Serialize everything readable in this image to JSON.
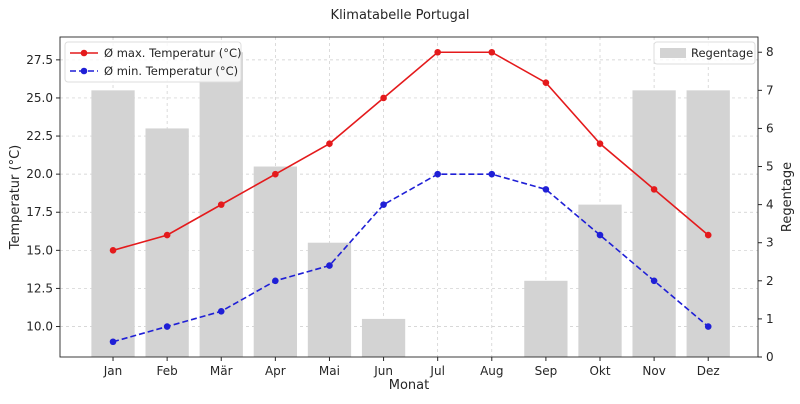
{
  "chart_data": {
    "type": "bar+line",
    "title": "Klimatabelle Portugal",
    "xlabel": "Monat",
    "ylabel": "Temperatur (°C)",
    "y2label": "Regentage",
    "categories": [
      "Jan",
      "Feb",
      "Mär",
      "Apr",
      "Mai",
      "Jun",
      "Jul",
      "Aug",
      "Sep",
      "Okt",
      "Nov",
      "Dez"
    ],
    "series": [
      {
        "name": "Ø max. Temperatur (°C)",
        "type": "line",
        "axis": "left",
        "color": "#e41a1c",
        "dash": "solid",
        "values": [
          15,
          16,
          18,
          20,
          22,
          25,
          28,
          28,
          26,
          22,
          19,
          16
        ]
      },
      {
        "name": "Ø min. Temperatur (°C)",
        "type": "line",
        "axis": "left",
        "color": "#1f1fd6",
        "dash": "dashed",
        "values": [
          9,
          10,
          11,
          13,
          14,
          18,
          20,
          20,
          19,
          16,
          13,
          10
        ]
      },
      {
        "name": "Regentage",
        "type": "bar",
        "axis": "right",
        "color": "#d3d3d3",
        "values": [
          7,
          6,
          8,
          5,
          3,
          1,
          0,
          0,
          2,
          4,
          7,
          7
        ]
      }
    ],
    "ylim": [
      8.0,
      29.0
    ],
    "y2lim": [
      0,
      8.4
    ],
    "yticks": [
      "10.0",
      "12.5",
      "15.0",
      "17.5",
      "20.0",
      "22.5",
      "25.0",
      "27.5"
    ],
    "y2ticks": [
      "0",
      "1",
      "2",
      "3",
      "4",
      "5",
      "6",
      "7",
      "8"
    ],
    "grid": true,
    "legend_left": "top-left",
    "legend_right": "top-right"
  }
}
